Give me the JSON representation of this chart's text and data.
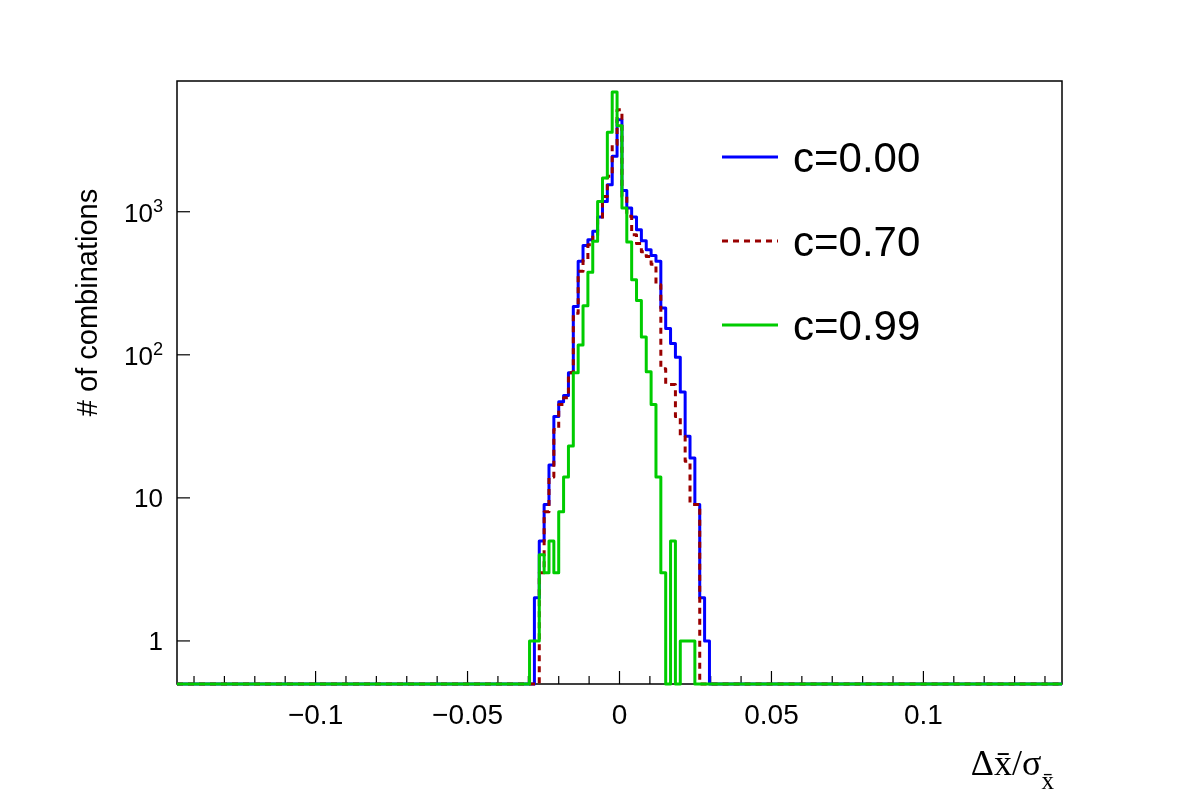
{
  "chart_data": {
    "type": "histogram",
    "xlabel": "Δx̄/σ$_{x̄}$",
    "ylabel": "# of combinations",
    "log": "y",
    "grid": false,
    "legend": "top right",
    "xlim": [
      -0.1456,
      0.1456
    ],
    "ylim": [
      0.5,
      8200
    ],
    "xticks": [
      {
        "value": -0.14,
        "label": null
      },
      {
        "value": -0.13,
        "label": null
      },
      {
        "value": -0.12,
        "label": null
      },
      {
        "value": -0.11,
        "label": null
      },
      {
        "value": -0.1,
        "label": "−0.1"
      },
      {
        "value": -0.09,
        "label": null
      },
      {
        "value": -0.08,
        "label": null
      },
      {
        "value": -0.07,
        "label": null
      },
      {
        "value": -0.06,
        "label": null
      },
      {
        "value": -0.05,
        "label": "−0.05"
      },
      {
        "value": -0.04,
        "label": null
      },
      {
        "value": -0.03,
        "label": null
      },
      {
        "value": -0.02,
        "label": null
      },
      {
        "value": -0.01,
        "label": null
      },
      0,
      {
        "value": 0.01,
        "label": null
      },
      {
        "value": 0.02,
        "label": null
      },
      {
        "value": 0.03,
        "label": null
      },
      {
        "value": 0.04,
        "label": null
      },
      0.05,
      {
        "value": 0.06,
        "label": null
      },
      {
        "value": 0.07,
        "label": null
      },
      {
        "value": 0.08,
        "label": null
      },
      {
        "value": 0.09,
        "label": null
      },
      0.1,
      {
        "value": 0.11,
        "label": null
      },
      {
        "value": 0.12,
        "label": null
      },
      {
        "value": 0.13,
        "label": null
      },
      {
        "value": 0.14,
        "label": null
      }
    ],
    "yticks": [
      1,
      10,
      {
        "value": 100,
        "label": "10$^{2}$"
      },
      {
        "value": 1000,
        "label": "10$^{3}$"
      }
    ],
    "bins": [
      -0.1456,
      -0.0296,
      -0.028,
      -0.0264,
      -0.0248,
      -0.0232,
      -0.0216,
      -0.02,
      -0.0184,
      -0.0168,
      -0.0152,
      -0.0136,
      -0.012,
      -0.0104,
      -0.0088,
      -0.0072,
      -0.0056,
      -0.004,
      -0.0024,
      -0.0008,
      0.0008,
      0.0024,
      0.004,
      0.0056,
      0.0072,
      0.0088,
      0.0104,
      0.012,
      0.0136,
      0.0152,
      0.0168,
      0.0184,
      0.02,
      0.0216,
      0.0232,
      0.0248,
      0.0264,
      0.028,
      0.0296,
      0.1456
    ],
    "series": [
      {
        "name": "c=0.00",
        "color": "#0000ff",
        "line_style": "solid",
        "values": [
          null,
          null,
          2,
          5,
          9,
          17,
          37,
          47,
          52,
          75,
          218,
          450,
          580,
          637,
          730,
          918,
          1180,
          1545,
          2440,
          4400,
          1410,
          1060,
          918,
          748,
          627,
          542,
          495,
          450,
          212,
          153,
          120,
          96,
          55,
          27,
          19,
          9,
          2,
          1,
          null
        ]
      },
      {
        "name": "c=0.70",
        "color": "#990000",
        "line_style": "dashed",
        "values": [
          null,
          null,
          null,
          3,
          8,
          14,
          30,
          45,
          50,
          75,
          195,
          383,
          460,
          587,
          680,
          880,
          1280,
          1770,
          2940,
          5160,
          1280,
          930,
          690,
          600,
          525,
          487,
          430,
          309,
          80,
          62,
          62,
          37,
          27,
          18,
          9,
          9,
          null,
          null,
          null
        ]
      },
      {
        "name": "c=0.99",
        "color": "#00cc00",
        "line_style": "solid",
        "values": [
          null,
          1,
          1,
          4,
          3,
          5,
          3,
          8,
          14,
          23,
          75,
          117,
          220,
          377,
          621,
          1180,
          1720,
          3590,
          6870,
          3990,
          1060,
          614,
          334,
          240,
          133,
          76,
          45,
          14,
          3,
          null,
          5,
          null,
          1,
          1,
          1,
          null,
          null,
          null,
          null
        ]
      }
    ]
  }
}
